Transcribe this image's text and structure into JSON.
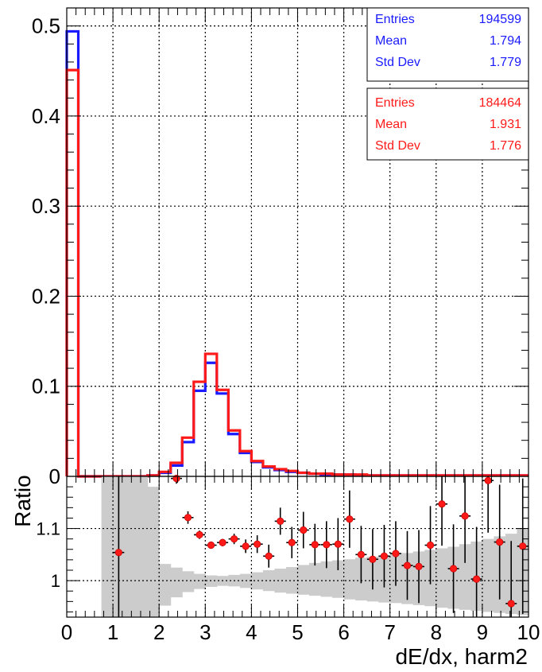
{
  "chart_data": [
    {
      "type": "line",
      "title": "",
      "xlabel": "",
      "ylabel": "",
      "xlim": [
        0,
        10
      ],
      "ylim": [
        0,
        0.52
      ],
      "grid": true,
      "bin_edges": [
        0,
        0.25,
        0.5,
        0.75,
        1,
        1.25,
        1.5,
        1.75,
        2,
        2.25,
        2.5,
        2.75,
        3,
        3.25,
        3.5,
        3.75,
        4,
        4.25,
        4.5,
        4.75,
        5,
        5.25,
        5.5,
        5.75,
        6,
        6.25,
        6.5,
        6.75,
        7,
        7.25,
        7.5,
        7.75,
        8,
        8.25,
        8.5,
        8.75,
        9,
        9.25,
        9.5,
        9.75,
        10
      ],
      "x_ticks": [
        0,
        1,
        2,
        3,
        4,
        5,
        6,
        7,
        8,
        9,
        10
      ],
      "x_tick_labels": [
        "0",
        "1",
        "2",
        "3",
        "4",
        "5",
        "6",
        "7",
        "8",
        "9",
        "10"
      ],
      "y_ticks": [
        0,
        0.1,
        0.2,
        0.3,
        0.4,
        0.5
      ],
      "y_tick_labels": [
        "0",
        "0.1",
        "0.2",
        "0.3",
        "0.4",
        "0.5"
      ],
      "series": [
        {
          "color": "#1a1aff",
          "values": [
            0.494,
            0,
            0,
            0,
            0,
            0,
            0,
            0.001,
            0.004,
            0.012,
            0.038,
            0.095,
            0.126,
            0.092,
            0.047,
            0.026,
            0.016,
            0.01,
            0.007,
            0.005,
            0.004,
            0.003,
            0.002,
            0.002,
            0.002,
            0.001,
            0.001,
            0.001,
            0.001,
            0.001,
            0.001,
            0.001,
            0.001,
            0.001,
            0.001,
            0.001,
            0.001,
            0.001,
            0.001,
            0.001
          ]
        },
        {
          "color": "#ff1a1a",
          "values": [
            0.451,
            0,
            0,
            0,
            0,
            0,
            0,
            0.001,
            0.005,
            0.015,
            0.043,
            0.105,
            0.136,
            0.096,
            0.051,
            0.028,
            0.017,
            0.011,
            0.008,
            0.006,
            0.004,
            0.003,
            0.003,
            0.002,
            0.002,
            0.002,
            0.001,
            0.001,
            0.001,
            0.001,
            0.001,
            0.001,
            0.001,
            0.001,
            0.001,
            0.001,
            0.001,
            0.001,
            0.001,
            0.001
          ]
        }
      ],
      "stats_boxes": [
        {
          "color": "#1a1aff",
          "rows": [
            {
              "label": "Entries",
              "value": "194599"
            },
            {
              "label": "Mean",
              "value": "1.794"
            },
            {
              "label": "Std Dev",
              "value": "1.779"
            }
          ]
        },
        {
          "color": "#ff1a1a",
          "rows": [
            {
              "label": "Entries",
              "value": "184464"
            },
            {
              "label": "Mean",
              "value": "1.931"
            },
            {
              "label": "Std Dev",
              "value": "1.776"
            }
          ]
        }
      ]
    },
    {
      "type": "scatter",
      "title": "",
      "xlabel": "dE/dx, harm2",
      "ylabel": "Ratio",
      "xlim": [
        0,
        10
      ],
      "ylim": [
        0.93,
        1.2
      ],
      "grid": true,
      "x_ticks": [
        0,
        1,
        2,
        3,
        4,
        5,
        6,
        7,
        8,
        9,
        10
      ],
      "x_tick_labels": [
        "0",
        "1",
        "2",
        "3",
        "4",
        "5",
        "6",
        "7",
        "8",
        "9",
        "10"
      ],
      "y_ticks": [
        1.0,
        1.1
      ],
      "y_tick_labels": [
        "1",
        "1.1"
      ],
      "band": {
        "color": "#cccccc",
        "bin_edges": [
          0.75,
          1,
          1.25,
          1.5,
          1.75,
          2,
          2.25,
          2.5,
          2.75,
          3,
          3.25,
          3.5,
          3.75,
          4,
          4.25,
          4.5,
          4.75,
          5,
          5.25,
          5.5,
          5.75,
          6,
          6.25,
          6.5,
          6.75,
          7,
          7.25,
          7.5,
          7.75,
          8,
          8.25,
          8.5,
          8.75,
          9,
          9.25,
          9.5,
          9.75,
          10
        ],
        "low": [
          0.93,
          0.93,
          0.93,
          0.93,
          0.93,
          0.952,
          0.968,
          0.978,
          0.984,
          0.988,
          0.99,
          0.989,
          0.986,
          0.983,
          0.98,
          0.977,
          0.975,
          0.973,
          0.971,
          0.969,
          0.967,
          0.964,
          0.962,
          0.96,
          0.958,
          0.957,
          0.955,
          0.953,
          0.951,
          0.948,
          0.946,
          0.944,
          0.942,
          0.94,
          0.938,
          0.936,
          0.934
        ],
        "high": [
          1.2,
          1.2,
          1.2,
          1.2,
          1.18,
          1.032,
          1.025,
          1.018,
          1.013,
          1.01,
          1.009,
          1.011,
          1.013,
          1.016,
          1.02,
          1.023,
          1.026,
          1.03,
          1.034,
          1.037,
          1.039,
          1.041,
          1.044,
          1.046,
          1.048,
          1.051,
          1.053,
          1.056,
          1.059,
          1.062,
          1.065,
          1.07,
          1.075,
          1.08,
          1.085,
          1.09,
          1.1
        ]
      },
      "points": [
        {
          "x": 1.125,
          "y": 1.054,
          "err": 0.2
        },
        {
          "x": 2.375,
          "y": 1.196,
          "err": 0.01
        },
        {
          "x": 2.625,
          "y": 1.121,
          "err": 0.012
        },
        {
          "x": 2.875,
          "y": 1.088,
          "err": 0.008
        },
        {
          "x": 3.125,
          "y": 1.068,
          "err": 0.006
        },
        {
          "x": 3.375,
          "y": 1.073,
          "err": 0.007
        },
        {
          "x": 3.625,
          "y": 1.08,
          "err": 0.01
        },
        {
          "x": 3.875,
          "y": 1.066,
          "err": 0.013
        },
        {
          "x": 4.125,
          "y": 1.07,
          "err": 0.017
        },
        {
          "x": 4.375,
          "y": 1.047,
          "err": 0.022
        },
        {
          "x": 4.625,
          "y": 1.114,
          "err": 0.026
        },
        {
          "x": 4.875,
          "y": 1.073,
          "err": 0.03
        },
        {
          "x": 5.125,
          "y": 1.097,
          "err": 0.035
        },
        {
          "x": 5.375,
          "y": 1.069,
          "err": 0.04
        },
        {
          "x": 5.625,
          "y": 1.069,
          "err": 0.045
        },
        {
          "x": 5.875,
          "y": 1.07,
          "err": 0.05
        },
        {
          "x": 6.125,
          "y": 1.118,
          "err": 0.055
        },
        {
          "x": 6.375,
          "y": 1.05,
          "err": 0.055
        },
        {
          "x": 6.625,
          "y": 1.041,
          "err": 0.058
        },
        {
          "x": 6.875,
          "y": 1.047,
          "err": 0.06
        },
        {
          "x": 7.125,
          "y": 1.052,
          "err": 0.062
        },
        {
          "x": 7.375,
          "y": 1.029,
          "err": 0.066
        },
        {
          "x": 7.625,
          "y": 1.027,
          "err": 0.07
        },
        {
          "x": 7.875,
          "y": 1.068,
          "err": 0.075
        },
        {
          "x": 8.125,
          "y": 1.147,
          "err": 0.08
        },
        {
          "x": 8.375,
          "y": 1.023,
          "err": 0.085
        },
        {
          "x": 8.625,
          "y": 1.124,
          "err": 0.09
        },
        {
          "x": 8.875,
          "y": 1.003,
          "err": 0.1
        },
        {
          "x": 9.125,
          "y": 1.192,
          "err": 0.1
        },
        {
          "x": 9.375,
          "y": 1.074,
          "err": 0.11
        },
        {
          "x": 9.625,
          "y": 0.956,
          "err": 0.12
        },
        {
          "x": 9.875,
          "y": 1.066,
          "err": 0.13
        }
      ]
    }
  ]
}
